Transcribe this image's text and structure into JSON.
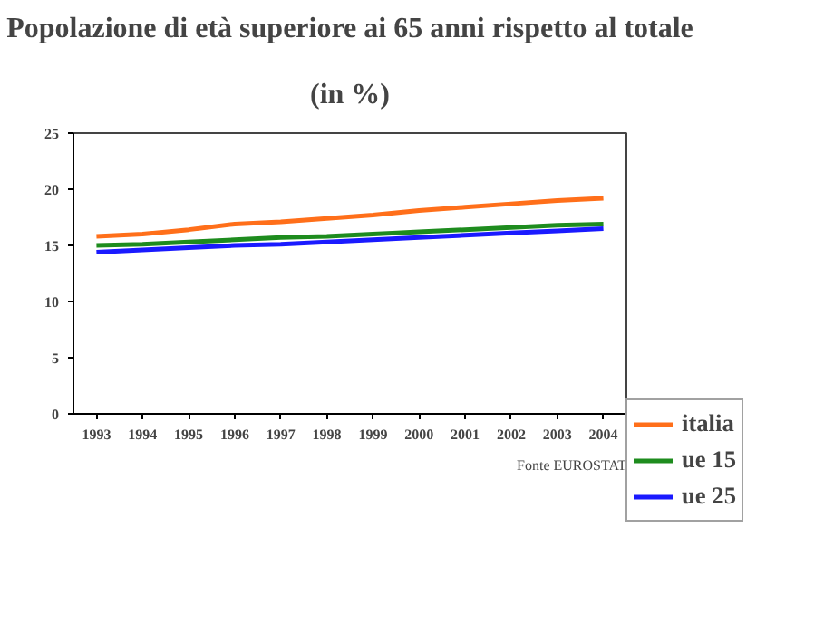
{
  "chart_data": {
    "type": "line",
    "title": "Popolazione di età superiore ai 65 anni rispetto al totale",
    "subtitle": "(in %)",
    "categories": [
      "1993",
      "1994",
      "1995",
      "1996",
      "1997",
      "1998",
      "1999",
      "2000",
      "2001",
      "2002",
      "2003",
      "2004"
    ],
    "series": [
      {
        "name": "italia",
        "color": "#ff6f1a",
        "values": [
          15.8,
          16.0,
          16.4,
          16.9,
          17.1,
          17.4,
          17.7,
          18.1,
          18.4,
          18.7,
          19.0,
          19.2
        ]
      },
      {
        "name": "ue 15",
        "color": "#1e8c1e",
        "values": [
          15.0,
          15.1,
          15.3,
          15.5,
          15.7,
          15.8,
          16.0,
          16.2,
          16.4,
          16.6,
          16.8,
          16.9
        ]
      },
      {
        "name": "ue 25",
        "color": "#1a1aff",
        "values": [
          14.4,
          14.6,
          14.8,
          15.0,
          15.1,
          15.3,
          15.5,
          15.7,
          15.9,
          16.1,
          16.3,
          16.5
        ]
      }
    ],
    "ylim": [
      0,
      25
    ],
    "yticks": [
      0,
      5,
      10,
      15,
      20,
      25
    ],
    "grid": false,
    "legend": "right",
    "marker": "none",
    "line_style": "solid",
    "annotations": [
      "Fonte EUROSTAT"
    ]
  }
}
